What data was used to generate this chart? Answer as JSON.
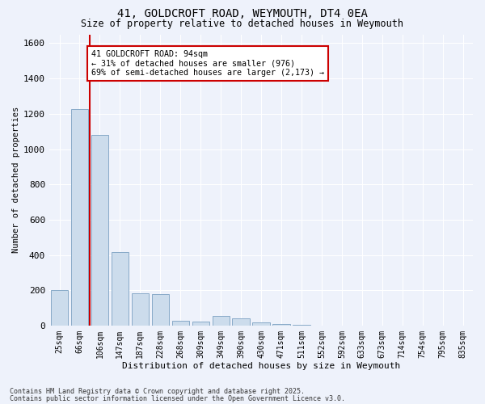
{
  "title1": "41, GOLDCROFT ROAD, WEYMOUTH, DT4 0EA",
  "title2": "Size of property relative to detached houses in Weymouth",
  "xlabel": "Distribution of detached houses by size in Weymouth",
  "ylabel": "Number of detached properties",
  "bar_labels": [
    "25sqm",
    "66sqm",
    "106sqm",
    "147sqm",
    "187sqm",
    "228sqm",
    "268sqm",
    "309sqm",
    "349sqm",
    "390sqm",
    "430sqm",
    "471sqm",
    "511sqm",
    "552sqm",
    "592sqm",
    "633sqm",
    "673sqm",
    "714sqm",
    "754sqm",
    "795sqm",
    "835sqm"
  ],
  "bar_values": [
    200,
    1225,
    1080,
    415,
    183,
    178,
    28,
    25,
    55,
    40,
    20,
    10,
    5,
    2,
    1,
    1,
    0,
    0,
    0,
    0,
    0
  ],
  "bar_color": "#ccdcec",
  "bar_edge_color": "#88aac8",
  "ylim": [
    0,
    1650
  ],
  "yticks": [
    0,
    200,
    400,
    600,
    800,
    1000,
    1200,
    1400,
    1600
  ],
  "property_line_x": 1.5,
  "annotation_line1": "41 GOLDCROFT ROAD: 94sqm",
  "annotation_line2": "← 31% of detached houses are smaller (976)",
  "annotation_line3": "69% of semi-detached houses are larger (2,173) →",
  "annotation_box_color": "#ffffff",
  "annotation_box_edge": "#cc0000",
  "vline_color": "#cc0000",
  "footnote1": "Contains HM Land Registry data © Crown copyright and database right 2025.",
  "footnote2": "Contains public sector information licensed under the Open Government Licence v3.0.",
  "bg_color": "#eef2fb",
  "grid_color": "#ffffff"
}
